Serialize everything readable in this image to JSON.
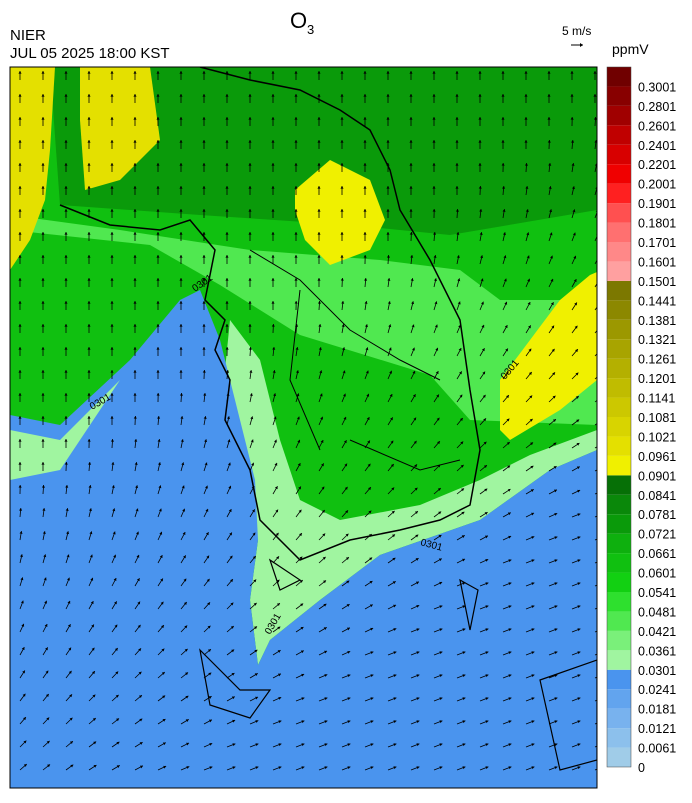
{
  "header": {
    "title": {
      "text": "O",
      "subscript": "3"
    },
    "agency": "NIER",
    "datetime": "JUL 05 2025 18:00 KST",
    "wind_scale": "5 m/s"
  },
  "map": {
    "contour_labels": [
      "0301",
      "0301",
      "0301",
      "0301",
      "0301"
    ]
  },
  "colorbar": {
    "unit": "ppmV",
    "levels": [
      {
        "label": "0",
        "color": "#a0cce8"
      },
      {
        "label": "0.0061",
        "color": "#8cc0ec"
      },
      {
        "label": "0.0121",
        "color": "#78b2ee"
      },
      {
        "label": "0.0181",
        "color": "#62a4ee"
      },
      {
        "label": "0.0241",
        "color": "#4a94ee"
      },
      {
        "label": "0.0301",
        "color": "#a0f5a0"
      },
      {
        "label": "0.0361",
        "color": "#7af07a"
      },
      {
        "label": "0.0421",
        "color": "#50e850"
      },
      {
        "label": "0.0481",
        "color": "#2ee02e"
      },
      {
        "label": "0.0541",
        "color": "#12d012"
      },
      {
        "label": "0.0601",
        "color": "#10c010"
      },
      {
        "label": "0.0661",
        "color": "#0eb00e"
      },
      {
        "label": "0.0721",
        "color": "#0a9a0a"
      },
      {
        "label": "0.0781",
        "color": "#0a880a"
      },
      {
        "label": "0.0841",
        "color": "#067006"
      },
      {
        "label": "0.0901",
        "color": "#f0f000"
      },
      {
        "label": "0.0961",
        "color": "#e4e000"
      },
      {
        "label": "0.1021",
        "color": "#d8d400"
      },
      {
        "label": "0.1081",
        "color": "#ccc800"
      },
      {
        "label": "0.1141",
        "color": "#c0bc00"
      },
      {
        "label": "0.1201",
        "color": "#b4b000"
      },
      {
        "label": "0.1261",
        "color": "#a8a400"
      },
      {
        "label": "0.1321",
        "color": "#9c9800"
      },
      {
        "label": "0.1381",
        "color": "#8c8800"
      },
      {
        "label": "0.1441",
        "color": "#7c7800"
      },
      {
        "label": "0.1501",
        "color": "#ffa0a0"
      },
      {
        "label": "0.1601",
        "color": "#ff8888"
      },
      {
        "label": "0.1701",
        "color": "#ff7070"
      },
      {
        "label": "0.1801",
        "color": "#ff5050"
      },
      {
        "label": "0.1901",
        "color": "#ff2020"
      },
      {
        "label": "0.2001",
        "color": "#f00000"
      },
      {
        "label": "0.2201",
        "color": "#d80000"
      },
      {
        "label": "0.2401",
        "color": "#c00000"
      },
      {
        "label": "0.2601",
        "color": "#a00000"
      },
      {
        "label": "0.2801",
        "color": "#880000"
      },
      {
        "label": "0.3001",
        "color": "#700000"
      }
    ]
  }
}
